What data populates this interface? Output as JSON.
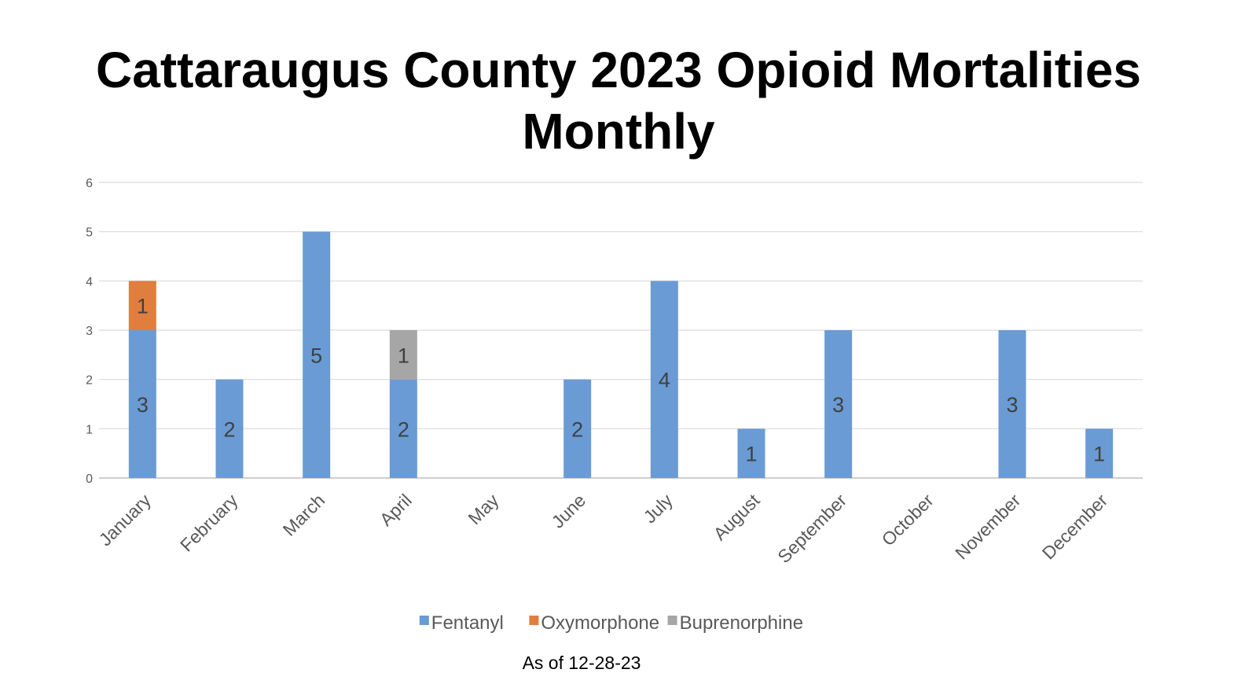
{
  "chart_data": {
    "type": "bar",
    "stacked": true,
    "title_line1": "Cattaraugus County 2023 Opioid Mortalities",
    "title_line2": "Monthly",
    "xlabel": "",
    "ylabel": "",
    "ylim": [
      0,
      6
    ],
    "yticks": [
      "0",
      "1",
      "2",
      "3",
      "4",
      "5",
      "6"
    ],
    "categories": [
      "January",
      "February",
      "March",
      "April",
      "May",
      "June",
      "July",
      "August",
      "September",
      "October",
      "November",
      "December"
    ],
    "series": [
      {
        "name": "Fentanyl",
        "color": "#6a9bd4",
        "values": [
          3,
          2,
          5,
          2,
          0,
          2,
          4,
          1,
          3,
          0,
          3,
          1
        ]
      },
      {
        "name": "Oxymorphone",
        "color": "#e07e3e",
        "values": [
          1,
          0,
          0,
          0,
          0,
          0,
          0,
          0,
          0,
          0,
          0,
          0
        ]
      },
      {
        "name": "Buprenorphine",
        "color": "#a6a6a6",
        "values": [
          0,
          0,
          0,
          1,
          0,
          0,
          0,
          0,
          0,
          0,
          0,
          0
        ]
      }
    ],
    "grid": true,
    "legend_position": "bottom",
    "data_labels": true
  },
  "footnote": "As of 12-28-23"
}
